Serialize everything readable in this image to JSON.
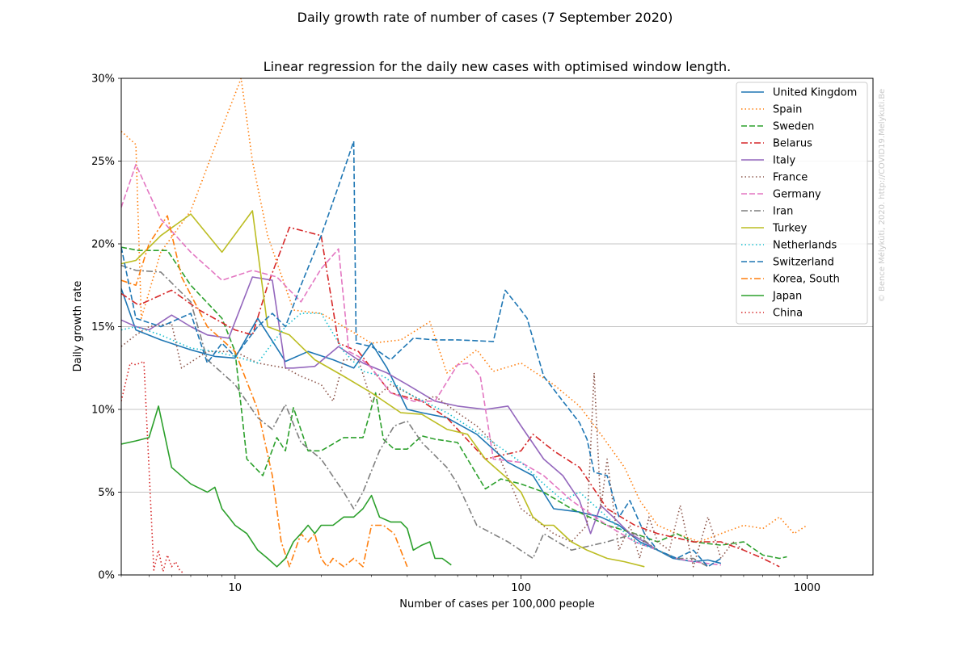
{
  "chart_data": {
    "type": "line",
    "suptitle": "Daily growth rate of number of cases (7 September 2020)",
    "title": "Linear regression for the daily new cases with optimised window length.",
    "xlabel": "Number of cases per 100,000 people",
    "ylabel": "Daily growth rate",
    "xscale": "log",
    "xlim": [
      4,
      1700
    ],
    "ylim": [
      0,
      30
    ],
    "yticks": [
      0,
      5,
      10,
      15,
      20,
      25,
      30
    ],
    "ytick_labels": [
      "0%",
      "5%",
      "10%",
      "15%",
      "20%",
      "25%",
      "30%"
    ],
    "xticks": [
      10,
      100,
      1000
    ],
    "xtick_labels": [
      "10",
      "100",
      "1000"
    ],
    "grid": "horizontal",
    "legend_position": "top-right",
    "watermark": "© Bence Mélykúti, 2020. http://COVID19.Melykuti.Be",
    "series": [
      {
        "name": "United Kingdom",
        "color": "#1f77b4",
        "style": "solid",
        "x": [
          4,
          4.5,
          5.5,
          7,
          8.5,
          10,
          12,
          15,
          18,
          22,
          26,
          30,
          34,
          40,
          45,
          55,
          70,
          90,
          110,
          130,
          160,
          190,
          220,
          260,
          300,
          340,
          400,
          450,
          500
        ],
        "y": [
          17.3,
          14.8,
          14.2,
          13.6,
          13.2,
          13.1,
          15.5,
          12.9,
          13.5,
          13.0,
          12.5,
          14.0,
          12.5,
          10.0,
          9.8,
          9.5,
          8.5,
          6.8,
          6.0,
          4.0,
          3.8,
          3.5,
          3.0,
          2.0,
          1.5,
          1.0,
          0.8,
          0.9,
          0.7
        ]
      },
      {
        "name": "Spain",
        "color": "#ff7f0e",
        "style": "dotted",
        "x": [
          4,
          4.5,
          4.7,
          5.5,
          7,
          9,
          10.5,
          11.5,
          13,
          16,
          20,
          24,
          30,
          38,
          48,
          55,
          70,
          80,
          100,
          130,
          160,
          190,
          230,
          260,
          300,
          350,
          420,
          500,
          600,
          700,
          800,
          900,
          1000
        ],
        "y": [
          26.8,
          26.0,
          15.5,
          19.5,
          22.0,
          27.0,
          30.0,
          25.0,
          20.5,
          16.0,
          15.8,
          15.0,
          14.0,
          14.2,
          15.3,
          12.2,
          13.6,
          12.3,
          12.8,
          11.5,
          10.2,
          8.5,
          6.5,
          4.5,
          3.0,
          2.5,
          2.0,
          2.5,
          3.0,
          2.8,
          3.5,
          2.5,
          3.0
        ]
      },
      {
        "name": "Sweden",
        "color": "#2ca02c",
        "style": "dashed",
        "x": [
          4,
          4.6,
          5.8,
          7,
          9,
          10,
          11,
          12.5,
          14,
          15,
          16,
          18,
          20,
          24,
          28,
          31,
          33,
          36,
          40,
          45,
          50,
          60,
          75,
          85,
          100,
          120,
          150,
          200,
          250,
          300,
          350,
          400,
          500,
          600,
          700,
          800,
          850
        ],
        "y": [
          19.8,
          19.6,
          19.6,
          17.5,
          15.5,
          13.5,
          7.0,
          6.0,
          8.3,
          7.5,
          10.1,
          7.5,
          7.5,
          8.3,
          8.3,
          11.0,
          8.2,
          7.6,
          7.6,
          8.4,
          8.2,
          8.0,
          5.2,
          5.8,
          5.5,
          5.0,
          4.0,
          3.0,
          2.5,
          2.0,
          2.5,
          2.0,
          1.8,
          2.0,
          1.2,
          1.0,
          1.1
        ]
      },
      {
        "name": "Belarus",
        "color": "#d62728",
        "style": "dashdot",
        "x": [
          4,
          4.6,
          6,
          7.5,
          10,
          11.5,
          13,
          15.5,
          20,
          23,
          27,
          35,
          45,
          55,
          75,
          100,
          110,
          130,
          160,
          200,
          250,
          300,
          400,
          500,
          600,
          700,
          800
        ],
        "y": [
          17.0,
          16.3,
          17.2,
          16.0,
          14.8,
          14.5,
          17.5,
          21.0,
          20.5,
          14.0,
          13.5,
          11.0,
          10.5,
          9.5,
          7.0,
          7.5,
          8.5,
          7.5,
          6.5,
          4.0,
          3.0,
          2.5,
          2.0,
          2.0,
          1.5,
          1.0,
          0.5
        ]
      },
      {
        "name": "Italy",
        "color": "#9467bd",
        "style": "solid",
        "x": [
          4,
          4.5,
          5,
          6,
          7,
          8,
          9.5,
          11.5,
          13.5,
          15,
          16,
          19,
          23,
          28,
          34,
          40,
          50,
          60,
          75,
          90,
          100,
          120,
          140,
          160,
          175,
          190,
          210,
          240,
          270,
          300
        ],
        "y": [
          15.4,
          15.0,
          14.8,
          15.7,
          15.0,
          14.5,
          14.3,
          18.0,
          17.8,
          12.5,
          12.5,
          12.6,
          13.8,
          12.8,
          12.2,
          11.5,
          10.5,
          10.2,
          10.0,
          10.2,
          9.0,
          7.0,
          6.0,
          4.5,
          2.5,
          4.2,
          3.5,
          2.5,
          2.0,
          1.5
        ]
      },
      {
        "name": "France",
        "color": "#8c564b",
        "style": "dotted",
        "x": [
          4,
          4.5,
          5,
          6,
          6.5,
          8,
          10,
          12,
          15,
          17,
          20,
          22,
          24,
          27,
          30,
          35,
          40,
          45,
          50,
          60,
          70,
          80,
          100,
          115,
          130,
          150,
          170,
          180,
          190,
          200,
          220,
          240,
          260,
          280,
          300,
          330,
          360,
          400,
          450,
          500,
          550,
          600
        ],
        "y": [
          13.8,
          14.5,
          15.0,
          15.2,
          12.5,
          13.5,
          13.5,
          12.8,
          12.5,
          12.0,
          11.5,
          10.5,
          13.0,
          13.0,
          10.5,
          11.5,
          11.0,
          10.5,
          10.8,
          9.8,
          9.0,
          8.0,
          4.0,
          3.2,
          2.5,
          2.0,
          3.0,
          12.2,
          4.0,
          7.0,
          1.5,
          3.0,
          1.0,
          3.5,
          2.0,
          1.5,
          4.2,
          0.5,
          3.5,
          1.0,
          2.0,
          1.5
        ]
      },
      {
        "name": "Germany",
        "color": "#e377c2",
        "style": "dashed",
        "x": [
          4,
          4.5,
          5.5,
          7,
          9,
          11.5,
          14,
          17,
          20,
          23,
          25,
          27,
          30,
          35,
          42,
          50,
          60,
          66,
          72,
          80,
          100,
          120,
          150,
          200,
          250,
          300,
          350,
          400,
          500
        ],
        "y": [
          22.2,
          24.8,
          21.5,
          19.5,
          17.8,
          18.4,
          18.0,
          16.5,
          18.5,
          19.7,
          13.5,
          13.2,
          12.5,
          11.0,
          10.5,
          10.5,
          12.7,
          12.8,
          12.0,
          7.0,
          6.8,
          6.0,
          4.5,
          3.0,
          2.0,
          1.5,
          1.0,
          0.8,
          0.6
        ]
      },
      {
        "name": "Iran",
        "color": "#7f7f7f",
        "style": "dashdot",
        "x": [
          4,
          4.5,
          5.5,
          7,
          8,
          10,
          12,
          13.5,
          15,
          17,
          20,
          24,
          26,
          28,
          32,
          36,
          40,
          45,
          55,
          60,
          70,
          90,
          110,
          120,
          150,
          200,
          250,
          300,
          350,
          400,
          450
        ],
        "y": [
          18.7,
          18.4,
          18.3,
          16.5,
          13.0,
          11.5,
          9.5,
          8.8,
          10.3,
          8.0,
          7.0,
          5.0,
          4.0,
          5.0,
          7.5,
          9.0,
          9.3,
          8.0,
          6.5,
          5.5,
          3.0,
          2.0,
          1.0,
          2.5,
          1.5,
          2.0,
          2.5,
          1.5,
          1.0,
          1.0,
          0.5
        ]
      },
      {
        "name": "Turkey",
        "color": "#bcbd22",
        "style": "solid",
        "x": [
          4,
          4.5,
          5.5,
          7,
          9,
          11.5,
          13,
          15.5,
          19,
          24,
          30,
          38,
          45,
          55,
          65,
          75,
          90,
          100,
          110,
          120,
          130,
          150,
          170,
          200,
          230,
          270
        ],
        "y": [
          18.8,
          19.0,
          20.5,
          21.8,
          19.5,
          22.0,
          15.0,
          14.5,
          13.0,
          12.0,
          11.0,
          9.8,
          9.7,
          8.8,
          8.5,
          7.0,
          5.8,
          5.0,
          3.5,
          3.0,
          3.0,
          2.0,
          1.5,
          1.0,
          0.8,
          0.5
        ]
      },
      {
        "name": "Netherlands",
        "color": "#17becf",
        "style": "dotted",
        "x": [
          4,
          4.5,
          5.5,
          7,
          8.5,
          10,
          12,
          13.5,
          15,
          17,
          20,
          24,
          28,
          33,
          40,
          48,
          55,
          65,
          80,
          100,
          120,
          140,
          160,
          200,
          250,
          300,
          350
        ],
        "y": [
          14.8,
          15.0,
          14.5,
          13.7,
          13.5,
          13.2,
          12.8,
          14.0,
          15.0,
          15.8,
          15.8,
          13.5,
          12.3,
          12.0,
          11.0,
          10.3,
          9.8,
          9.0,
          8.0,
          6.8,
          5.5,
          4.5,
          5.0,
          3.5,
          2.0,
          1.5,
          1.0
        ]
      },
      {
        "name": "Switzerland",
        "color": "#1f77b4",
        "style": "dashed",
        "x": [
          4,
          4.5,
          5.5,
          7,
          8,
          9,
          10,
          12,
          13.5,
          15,
          17,
          20,
          23,
          26,
          26.5,
          30,
          35,
          42,
          50,
          60,
          80,
          88,
          100,
          105,
          120,
          140,
          160,
          170,
          180,
          200,
          220,
          240,
          270,
          300,
          350,
          400,
          450,
          500
        ],
        "y": [
          19.8,
          15.5,
          15.0,
          15.8,
          12.8,
          14.0,
          13.2,
          15.0,
          15.8,
          15.0,
          17.5,
          20.5,
          23.5,
          26.2,
          14.0,
          13.8,
          13.0,
          14.3,
          14.2,
          14.2,
          14.1,
          17.2,
          16.0,
          15.5,
          12.0,
          10.5,
          9.2,
          8.2,
          6.2,
          6.0,
          3.5,
          4.5,
          2.5,
          1.5,
          1.0,
          1.5,
          0.5,
          1.0
        ]
      },
      {
        "name": "Korea, South",
        "color": "#ff7f0e",
        "style": "dashdot",
        "x": [
          4,
          4.5,
          5,
          5.8,
          6.5,
          8,
          10,
          12,
          13.5,
          14.5,
          15.5,
          17,
          18,
          19,
          20,
          21,
          22,
          24,
          26,
          28,
          30,
          33,
          36,
          40
        ],
        "y": [
          17.8,
          17.5,
          20.0,
          21.7,
          18.0,
          15.0,
          13.5,
          10.0,
          6.0,
          2.0,
          0.5,
          2.5,
          2.0,
          2.5,
          1.0,
          0.5,
          1.0,
          0.5,
          1.0,
          0.5,
          3.0,
          3.0,
          2.5,
          0.5
        ]
      },
      {
        "name": "Japan",
        "color": "#2ca02c",
        "style": "solid",
        "x": [
          4,
          4.5,
          5,
          5.4,
          6,
          7,
          8,
          8.5,
          9,
          9.5,
          10,
          11,
          12,
          13,
          14,
          15,
          16,
          17,
          18,
          19,
          20,
          22,
          24,
          26,
          28,
          30,
          32,
          35,
          38,
          40,
          42,
          45,
          48,
          50,
          53,
          55,
          57
        ],
        "y": [
          7.9,
          8.1,
          8.3,
          10.2,
          6.5,
          5.5,
          5.0,
          5.3,
          4.0,
          3.5,
          3.0,
          2.5,
          1.5,
          1.0,
          0.5,
          1.0,
          2.0,
          2.5,
          3.0,
          2.5,
          3.0,
          3.0,
          3.5,
          3.5,
          4.0,
          4.8,
          3.5,
          3.2,
          3.2,
          2.8,
          1.5,
          1.8,
          2.0,
          1.0,
          1.0,
          0.8,
          0.6
        ]
      },
      {
        "name": "China",
        "color": "#d62728",
        "style": "dotted",
        "x": [
          4,
          4.3,
          4.5,
          4.8,
          5,
          5.2,
          5.4,
          5.6,
          5.8,
          6,
          6.2,
          6.4,
          6.6
        ],
        "y": [
          10.5,
          12.8,
          12.7,
          12.9,
          6.5,
          0.3,
          1.5,
          0.2,
          1.2,
          0.5,
          0.8,
          0.3,
          0.1
        ]
      }
    ]
  }
}
